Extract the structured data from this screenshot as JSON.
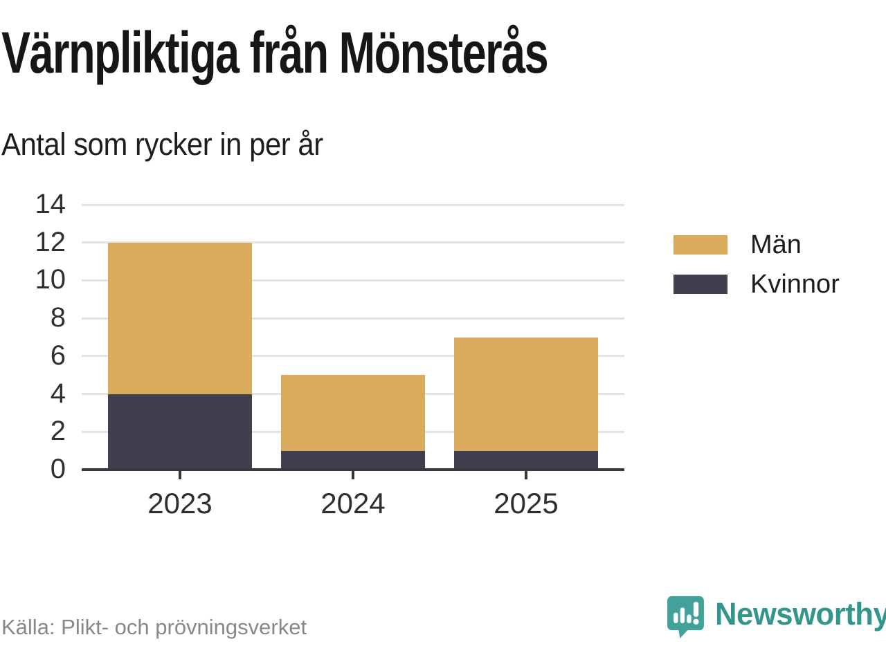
{
  "chart_data": {
    "type": "bar",
    "stacked": true,
    "title": "Värnpliktiga från Mönsterås",
    "subtitle": "Antal som rycker in per år",
    "categories": [
      "2023",
      "2024",
      "2025"
    ],
    "series": [
      {
        "name": "Kvinnor",
        "color": "#413f4d",
        "values": [
          4,
          1,
          1
        ]
      },
      {
        "name": "Män",
        "color": "#d9ab5c",
        "values": [
          8,
          4,
          6
        ]
      }
    ],
    "totals": [
      12,
      5,
      7
    ],
    "ylim": [
      0,
      14
    ],
    "yticks": [
      0,
      2,
      4,
      6,
      8,
      10,
      12,
      14
    ],
    "grid": true,
    "legend_position": "right",
    "legend_order": [
      "Män",
      "Kvinnor"
    ]
  },
  "footer": {
    "source": "Källa: Plikt- och prövningsverket",
    "brand": "Newsworthy",
    "brand_icon": "newsworthy-speech-bubble-bar-chart-icon"
  },
  "colors": {
    "background": "#ffffff",
    "title_text": "#161616",
    "axis_text": "#2e2e33",
    "gridline": "#e3e3e3",
    "axis_line": "#38373f",
    "man_gold": "#d9ab5c",
    "kvinnor_dark": "#413f4d",
    "source_gray": "#87878c",
    "brand_teal_icon": "#42a199",
    "brand_teal_text": "#33968d"
  }
}
